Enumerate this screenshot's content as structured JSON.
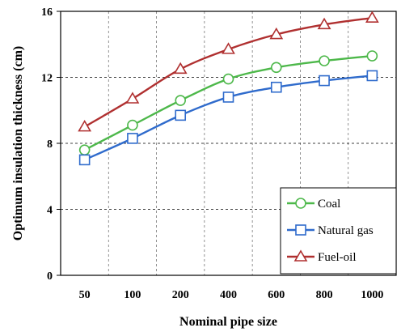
{
  "chart_data": {
    "type": "line",
    "categories": [
      "50",
      "100",
      "200",
      "400",
      "600",
      "800",
      "1000"
    ],
    "xlabel": "Nominal pipe size",
    "ylabel": "Optimum insulation thickness (cm)",
    "ylim": [
      0,
      16
    ],
    "yticks": [
      "0",
      "4",
      "8",
      "12",
      "16"
    ],
    "grid": true,
    "legend_position": "bottom-right",
    "series": [
      {
        "name": "Coal",
        "marker": "circle",
        "color": "#4db84a",
        "values": [
          7.6,
          9.1,
          10.6,
          11.9,
          12.6,
          13.0,
          13.3
        ]
      },
      {
        "name": "Natural gas",
        "marker": "square",
        "color": "#2f6bcc",
        "values": [
          7.0,
          8.3,
          9.7,
          10.8,
          11.4,
          11.8,
          12.1
        ]
      },
      {
        "name": "Fuel-oil",
        "marker": "triangle",
        "color": "#b03030",
        "values": [
          9.0,
          10.7,
          12.5,
          13.7,
          14.6,
          15.2,
          15.6
        ]
      }
    ]
  }
}
